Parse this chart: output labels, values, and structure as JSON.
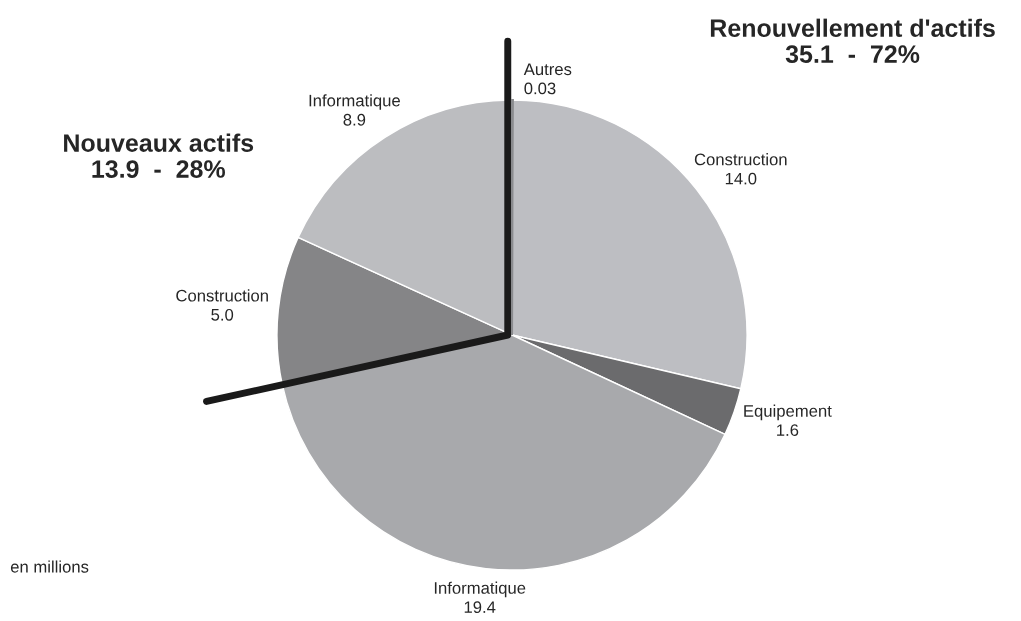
{
  "chart_data": {
    "type": "pie",
    "categories": [
      "Autres",
      "Construction",
      "Equipement",
      "Informatique",
      "Construction",
      "Informatique"
    ],
    "values": [
      0.03,
      14.0,
      1.6,
      19.4,
      5.0,
      8.9
    ],
    "value_labels": [
      "0.03",
      "14.0",
      "1.6",
      "19.4",
      "5.0",
      "8.9"
    ],
    "colors": [
      "#8a8b8e",
      "#bdbec2",
      "#6b6b6d",
      "#a8a9ac",
      "#858587",
      "#bcbdc0"
    ],
    "annotations": [
      "Renouvellement d'actifs\n35.1  -  72%",
      "Nouveaux actifs\n13.9  -  28%",
      "en millions"
    ],
    "legend": false
  }
}
